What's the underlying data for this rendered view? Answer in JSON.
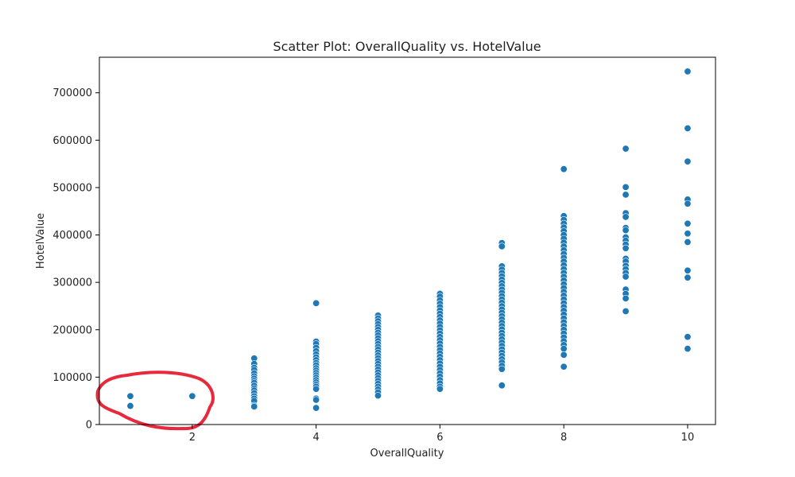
{
  "chart_data": {
    "type": "scatter",
    "title": "Scatter Plot: OverallQuality vs. HotelValue",
    "xlabel": "OverallQuality",
    "ylabel": "HotelValue",
    "xlim": [
      0.5,
      10.45
    ],
    "ylim": [
      0,
      775000
    ],
    "x_ticks": [
      2,
      4,
      6,
      8,
      10
    ],
    "y_ticks": [
      0,
      100000,
      200000,
      300000,
      400000,
      500000,
      600000,
      700000
    ],
    "y_tick_labels": [
      "0",
      "100000",
      "200000",
      "300000",
      "400000",
      "500000",
      "600000",
      "700000"
    ],
    "x_tick_labels": [
      "2",
      "4",
      "6",
      "8",
      "10"
    ],
    "grid": false,
    "legend": false,
    "marker_color": "#1f77b4",
    "annotation": {
      "type": "freehand-circle",
      "color": "#e8293b"
    },
    "points": [
      {
        "x": 1,
        "y": 60000
      },
      {
        "x": 1,
        "y": 39300
      },
      {
        "x": 2,
        "y": 60000
      },
      {
        "x": 3,
        "y": 139600
      },
      {
        "x": 3,
        "y": 128000
      },
      {
        "x": 3,
        "y": 120000
      },
      {
        "x": 3,
        "y": 115000
      },
      {
        "x": 3,
        "y": 108000
      },
      {
        "x": 3,
        "y": 102000
      },
      {
        "x": 3,
        "y": 97000
      },
      {
        "x": 3,
        "y": 92000
      },
      {
        "x": 3,
        "y": 88000
      },
      {
        "x": 3,
        "y": 82000
      },
      {
        "x": 3,
        "y": 76000
      },
      {
        "x": 3,
        "y": 72000
      },
      {
        "x": 3,
        "y": 66000
      },
      {
        "x": 3,
        "y": 60000
      },
      {
        "x": 3,
        "y": 55000
      },
      {
        "x": 3,
        "y": 50000
      },
      {
        "x": 3,
        "y": 40000
      },
      {
        "x": 3,
        "y": 37900
      },
      {
        "x": 4,
        "y": 256000
      },
      {
        "x": 4,
        "y": 175000
      },
      {
        "x": 4,
        "y": 170000
      },
      {
        "x": 4,
        "y": 162000
      },
      {
        "x": 4,
        "y": 155000
      },
      {
        "x": 4,
        "y": 148000
      },
      {
        "x": 4,
        "y": 142000
      },
      {
        "x": 4,
        "y": 136000
      },
      {
        "x": 4,
        "y": 130000
      },
      {
        "x": 4,
        "y": 125000
      },
      {
        "x": 4,
        "y": 119000
      },
      {
        "x": 4,
        "y": 114000
      },
      {
        "x": 4,
        "y": 109000
      },
      {
        "x": 4,
        "y": 104000
      },
      {
        "x": 4,
        "y": 99000
      },
      {
        "x": 4,
        "y": 94000
      },
      {
        "x": 4,
        "y": 89000
      },
      {
        "x": 4,
        "y": 84000
      },
      {
        "x": 4,
        "y": 80000
      },
      {
        "x": 4,
        "y": 75000
      },
      {
        "x": 4,
        "y": 55000
      },
      {
        "x": 4,
        "y": 52000
      },
      {
        "x": 4,
        "y": 35000
      },
      {
        "x": 5,
        "y": 230000
      },
      {
        "x": 5,
        "y": 224000
      },
      {
        "x": 5,
        "y": 218000
      },
      {
        "x": 5,
        "y": 212000
      },
      {
        "x": 5,
        "y": 206000
      },
      {
        "x": 5,
        "y": 200000
      },
      {
        "x": 5,
        "y": 194000
      },
      {
        "x": 5,
        "y": 188000
      },
      {
        "x": 5,
        "y": 182000
      },
      {
        "x": 5,
        "y": 176000
      },
      {
        "x": 5,
        "y": 170000
      },
      {
        "x": 5,
        "y": 164000
      },
      {
        "x": 5,
        "y": 158000
      },
      {
        "x": 5,
        "y": 152000
      },
      {
        "x": 5,
        "y": 146000
      },
      {
        "x": 5,
        "y": 140000
      },
      {
        "x": 5,
        "y": 134000
      },
      {
        "x": 5,
        "y": 128000
      },
      {
        "x": 5,
        "y": 122000
      },
      {
        "x": 5,
        "y": 116000
      },
      {
        "x": 5,
        "y": 110000
      },
      {
        "x": 5,
        "y": 104000
      },
      {
        "x": 5,
        "y": 98000
      },
      {
        "x": 5,
        "y": 92000
      },
      {
        "x": 5,
        "y": 86000
      },
      {
        "x": 5,
        "y": 80000
      },
      {
        "x": 5,
        "y": 74000
      },
      {
        "x": 5,
        "y": 68000
      },
      {
        "x": 5,
        "y": 61000
      },
      {
        "x": 6,
        "y": 276000
      },
      {
        "x": 6,
        "y": 270000
      },
      {
        "x": 6,
        "y": 262000
      },
      {
        "x": 6,
        "y": 255000
      },
      {
        "x": 6,
        "y": 248000
      },
      {
        "x": 6,
        "y": 241000
      },
      {
        "x": 6,
        "y": 234000
      },
      {
        "x": 6,
        "y": 227000
      },
      {
        "x": 6,
        "y": 220000
      },
      {
        "x": 6,
        "y": 213000
      },
      {
        "x": 6,
        "y": 206000
      },
      {
        "x": 6,
        "y": 199000
      },
      {
        "x": 6,
        "y": 192000
      },
      {
        "x": 6,
        "y": 185000
      },
      {
        "x": 6,
        "y": 178000
      },
      {
        "x": 6,
        "y": 171000
      },
      {
        "x": 6,
        "y": 164000
      },
      {
        "x": 6,
        "y": 157000
      },
      {
        "x": 6,
        "y": 150000
      },
      {
        "x": 6,
        "y": 143000
      },
      {
        "x": 6,
        "y": 136000
      },
      {
        "x": 6,
        "y": 129000
      },
      {
        "x": 6,
        "y": 122000
      },
      {
        "x": 6,
        "y": 115000
      },
      {
        "x": 6,
        "y": 108000
      },
      {
        "x": 6,
        "y": 101000
      },
      {
        "x": 6,
        "y": 94000
      },
      {
        "x": 6,
        "y": 87000
      },
      {
        "x": 6,
        "y": 80000
      },
      {
        "x": 6,
        "y": 75000
      },
      {
        "x": 7,
        "y": 383000
      },
      {
        "x": 7,
        "y": 376000
      },
      {
        "x": 7,
        "y": 334000
      },
      {
        "x": 7,
        "y": 327000
      },
      {
        "x": 7,
        "y": 320000
      },
      {
        "x": 7,
        "y": 313000
      },
      {
        "x": 7,
        "y": 306000
      },
      {
        "x": 7,
        "y": 299000
      },
      {
        "x": 7,
        "y": 292000
      },
      {
        "x": 7,
        "y": 285000
      },
      {
        "x": 7,
        "y": 278000
      },
      {
        "x": 7,
        "y": 271000
      },
      {
        "x": 7,
        "y": 264000
      },
      {
        "x": 7,
        "y": 257000
      },
      {
        "x": 7,
        "y": 250000
      },
      {
        "x": 7,
        "y": 243000
      },
      {
        "x": 7,
        "y": 236000
      },
      {
        "x": 7,
        "y": 229000
      },
      {
        "x": 7,
        "y": 222000
      },
      {
        "x": 7,
        "y": 215000
      },
      {
        "x": 7,
        "y": 208000
      },
      {
        "x": 7,
        "y": 201000
      },
      {
        "x": 7,
        "y": 194000
      },
      {
        "x": 7,
        "y": 187000
      },
      {
        "x": 7,
        "y": 180000
      },
      {
        "x": 7,
        "y": 173000
      },
      {
        "x": 7,
        "y": 166000
      },
      {
        "x": 7,
        "y": 159000
      },
      {
        "x": 7,
        "y": 152000
      },
      {
        "x": 7,
        "y": 145000
      },
      {
        "x": 7,
        "y": 138000
      },
      {
        "x": 7,
        "y": 131000
      },
      {
        "x": 7,
        "y": 124000
      },
      {
        "x": 7,
        "y": 117000
      },
      {
        "x": 7,
        "y": 82500
      },
      {
        "x": 8,
        "y": 539000
      },
      {
        "x": 8,
        "y": 440000
      },
      {
        "x": 8,
        "y": 432000
      },
      {
        "x": 8,
        "y": 424000
      },
      {
        "x": 8,
        "y": 416000
      },
      {
        "x": 8,
        "y": 408000
      },
      {
        "x": 8,
        "y": 400000
      },
      {
        "x": 8,
        "y": 392000
      },
      {
        "x": 8,
        "y": 384000
      },
      {
        "x": 8,
        "y": 376000
      },
      {
        "x": 8,
        "y": 368000
      },
      {
        "x": 8,
        "y": 360000
      },
      {
        "x": 8,
        "y": 352000
      },
      {
        "x": 8,
        "y": 344000
      },
      {
        "x": 8,
        "y": 336000
      },
      {
        "x": 8,
        "y": 328000
      },
      {
        "x": 8,
        "y": 320000
      },
      {
        "x": 8,
        "y": 312000
      },
      {
        "x": 8,
        "y": 304000
      },
      {
        "x": 8,
        "y": 296000
      },
      {
        "x": 8,
        "y": 288000
      },
      {
        "x": 8,
        "y": 280000
      },
      {
        "x": 8,
        "y": 272000
      },
      {
        "x": 8,
        "y": 264000
      },
      {
        "x": 8,
        "y": 256000
      },
      {
        "x": 8,
        "y": 248000
      },
      {
        "x": 8,
        "y": 240000
      },
      {
        "x": 8,
        "y": 232000
      },
      {
        "x": 8,
        "y": 224000
      },
      {
        "x": 8,
        "y": 216000
      },
      {
        "x": 8,
        "y": 208000
      },
      {
        "x": 8,
        "y": 200000
      },
      {
        "x": 8,
        "y": 192000
      },
      {
        "x": 8,
        "y": 184000
      },
      {
        "x": 8,
        "y": 176000
      },
      {
        "x": 8,
        "y": 168000
      },
      {
        "x": 8,
        "y": 160000
      },
      {
        "x": 8,
        "y": 147000
      },
      {
        "x": 8,
        "y": 122000
      },
      {
        "x": 9,
        "y": 582000
      },
      {
        "x": 9,
        "y": 501000
      },
      {
        "x": 9,
        "y": 485000
      },
      {
        "x": 9,
        "y": 446000
      },
      {
        "x": 9,
        "y": 438000
      },
      {
        "x": 9,
        "y": 415000
      },
      {
        "x": 9,
        "y": 410000
      },
      {
        "x": 9,
        "y": 395000
      },
      {
        "x": 9,
        "y": 388000
      },
      {
        "x": 9,
        "y": 380000
      },
      {
        "x": 9,
        "y": 372000
      },
      {
        "x": 9,
        "y": 350000
      },
      {
        "x": 9,
        "y": 344000
      },
      {
        "x": 9,
        "y": 335000
      },
      {
        "x": 9,
        "y": 328000
      },
      {
        "x": 9,
        "y": 320000
      },
      {
        "x": 9,
        "y": 312000
      },
      {
        "x": 9,
        "y": 285000
      },
      {
        "x": 9,
        "y": 276000
      },
      {
        "x": 9,
        "y": 266000
      },
      {
        "x": 9,
        "y": 239000
      },
      {
        "x": 10,
        "y": 745000
      },
      {
        "x": 10,
        "y": 625000
      },
      {
        "x": 10,
        "y": 555000
      },
      {
        "x": 10,
        "y": 475000
      },
      {
        "x": 10,
        "y": 466000
      },
      {
        "x": 10,
        "y": 424000
      },
      {
        "x": 10,
        "y": 403000
      },
      {
        "x": 10,
        "y": 385000
      },
      {
        "x": 10,
        "y": 325000
      },
      {
        "x": 10,
        "y": 310000
      },
      {
        "x": 10,
        "y": 185000
      },
      {
        "x": 10,
        "y": 160000
      }
    ]
  }
}
